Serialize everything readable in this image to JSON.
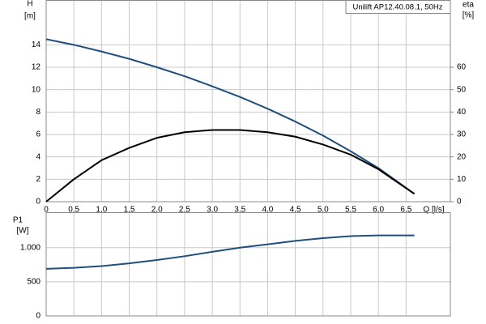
{
  "chart_data": [
    {
      "type": "line",
      "title": "Unilift AP12.40.08.1, 50Hz",
      "ylabel": "H",
      "yunit": "[m]",
      "y2label": "eta",
      "y2unit": "[%]",
      "xlabel": "Q [l/s]",
      "x": [
        0,
        0.5,
        1,
        1.5,
        2,
        2.5,
        3,
        3.5,
        4,
        4.5,
        5,
        5.5,
        6,
        6.65
      ],
      "series": [
        {
          "color": "#1f4f7f",
          "values": [
            14.5,
            14.0,
            13.4,
            12.75,
            12.0,
            11.2,
            10.3,
            9.35,
            8.3,
            7.15,
            5.9,
            4.5,
            3.0,
            0.7
          ]
        },
        {
          "color": "#000000",
          "axis": "y2",
          "values": [
            0,
            10,
            18.5,
            24,
            28.5,
            31,
            32,
            32,
            31,
            29,
            25.5,
            21,
            14.5,
            3.5
          ]
        }
      ],
      "xlim": [
        0,
        7.3
      ],
      "xticks": [
        0,
        {
          "value": 0.5,
          "label": "0,5"
        },
        {
          "value": 1,
          "label": "1,0"
        },
        {
          "value": 1.5,
          "label": "1,5"
        },
        {
          "value": 2,
          "label": "2,0"
        },
        {
          "value": 2.5,
          "label": "2,5"
        },
        {
          "value": 3,
          "label": "3,0"
        },
        {
          "value": 3.5,
          "label": "3,5"
        },
        {
          "value": 4,
          "label": "4,0"
        },
        {
          "value": 4.5,
          "label": "4,5"
        },
        {
          "value": 5,
          "label": "5,0"
        },
        {
          "value": 5.5,
          "label": "5,5"
        },
        {
          "value": 6,
          "label": "6,0"
        },
        {
          "value": 6.5,
          "label": "6,5"
        }
      ],
      "ylim": [
        0,
        18
      ],
      "yticks": [
        0,
        2,
        4,
        6,
        8,
        10,
        12,
        14
      ],
      "y2lim": [
        0,
        90
      ],
      "y2ticks": [
        0,
        10,
        20,
        30,
        40,
        50,
        60
      ],
      "grid": true
    },
    {
      "type": "line",
      "ylabel": "P1",
      "yunit": "[W]",
      "x": [
        0,
        0.5,
        1,
        1.5,
        2,
        2.5,
        3,
        3.5,
        4,
        4.5,
        5,
        5.5,
        6,
        6.65
      ],
      "series": [
        {
          "color": "#1f4f7f",
          "values": [
            690,
            705,
            730,
            770,
            820,
            875,
            940,
            1000,
            1050,
            1100,
            1140,
            1170,
            1180,
            1180
          ]
        }
      ],
      "xlim": [
        0,
        7.3
      ],
      "ylim": [
        0,
        1520
      ],
      "yticks": [
        0,
        500,
        {
          "value": 1000,
          "label": "1.000"
        }
      ],
      "grid": true
    }
  ]
}
